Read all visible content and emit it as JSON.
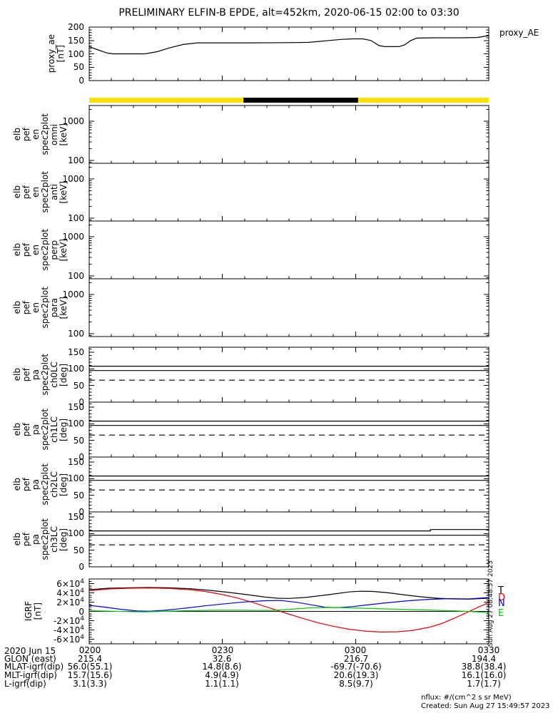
{
  "title": "PRELIMINARY ELFIN-B EPDE, alt=452km, 2020-06-15 02:00 to 03:30",
  "right_labels": {
    "proxy": "proxy_AE",
    "side_timestamp": "Sun Aug 27 08:48:57 2023",
    "igrf_legend": [
      {
        "label": "T",
        "color": "#000000"
      },
      {
        "label": "D",
        "color": "#e60000"
      },
      {
        "label": "N",
        "color": "#0000e6"
      },
      {
        "label": "E",
        "color": "#00c800"
      }
    ]
  },
  "footer": {
    "nflux": "nflux: #/(cm^2 s sr MeV)",
    "created": "Created: Sun Aug 27 15:49:57 2023"
  },
  "bottom": {
    "date_label": "2020 Jun 15",
    "rows": [
      {
        "label": "GLON (east)",
        "values": [
          "215.4",
          "32.6",
          "216.7",
          "194.4"
        ]
      },
      {
        "label": "MLAT-igrf(dip)",
        "values": [
          "56.0(55.1)",
          "14.8(8.6)",
          "-69.7(-70.6)",
          "38.8(38.4)"
        ]
      },
      {
        "label": "MLT-igrf(dip)",
        "values": [
          "15.7(15.6)",
          "4.9(4.9)",
          "20.6(19.3)",
          "16.1(16.0)"
        ]
      },
      {
        "label": "L-igrf(dip)",
        "values": [
          "3.1(3.3)",
          "1.1(1.1)",
          "8.5(9.7)",
          "1.7(1.7)"
        ]
      }
    ]
  },
  "left_labels": {
    "proxy": [
      "proxy_ae",
      "[nT]"
    ],
    "spectro": [
      [
        "elb",
        "pef",
        "en",
        "spec2plot",
        "omni",
        "[keV]"
      ],
      [
        "elb",
        "pef",
        "en",
        "spec2plot",
        "anti",
        "[keV]"
      ],
      [
        "elb",
        "pef",
        "en",
        "spec2plot",
        "perp",
        "[keV]"
      ],
      [
        "elb",
        "pef",
        "en",
        "spec2plot",
        "para",
        "[keV]"
      ]
    ],
    "pitch": [
      [
        "elb",
        "pef",
        "pa",
        "spec2plot",
        "ch0LC",
        "[deg]"
      ],
      [
        "elb",
        "pef",
        "pa",
        "spec2plot",
        "ch1LC",
        "[deg]"
      ],
      [
        "elb",
        "pef",
        "pa",
        "spec2plot",
        "ch2LC",
        "[deg]"
      ],
      [
        "elb",
        "pef",
        "pa",
        "spec2plot",
        "ch3LC",
        "[deg]"
      ]
    ],
    "igrf": [
      "IGRF",
      "[nT]"
    ]
  },
  "chart_data": {
    "x_axis": {
      "date": "2020 Jun 15",
      "ticks": [
        "0200",
        "0230",
        "0300",
        "0330"
      ],
      "minor_tick_minutes": 5,
      "span_minutes": 90
    },
    "proxy_ae": {
      "type": "line",
      "ylabel": "proxy_ae [nT]",
      "ylim": [
        0,
        200
      ],
      "yticks": [
        0,
        50,
        100,
        150,
        200
      ],
      "series": [
        {
          "name": "proxy_AE",
          "color": "#000000",
          "points": [
            [
              0,
              127
            ],
            [
              0.02,
              116
            ],
            [
              0.045,
              103
            ],
            [
              0.06,
              100
            ],
            [
              0.14,
              100
            ],
            [
              0.17,
              108
            ],
            [
              0.2,
              122
            ],
            [
              0.235,
              135
            ],
            [
              0.27,
              141
            ],
            [
              0.4,
              141
            ],
            [
              0.5,
              142
            ],
            [
              0.55,
              143
            ],
            [
              0.6,
              150
            ],
            [
              0.63,
              154
            ],
            [
              0.66,
              156
            ],
            [
              0.685,
              156
            ],
            [
              0.705,
              150
            ],
            [
              0.725,
              131
            ],
            [
              0.74,
              127
            ],
            [
              0.775,
              127
            ],
            [
              0.79,
              134
            ],
            [
              0.805,
              150
            ],
            [
              0.82,
              159
            ],
            [
              0.87,
              160
            ],
            [
              0.93,
              160
            ],
            [
              0.97,
              161
            ],
            [
              1,
              168
            ]
          ]
        }
      ]
    },
    "status_bar": {
      "type": "strip",
      "segments": [
        {
          "from": 0,
          "to": 0.386,
          "color": "#ffe100"
        },
        {
          "from": 0.386,
          "to": 0.673,
          "color": "#000000"
        },
        {
          "from": 0.673,
          "to": 1,
          "color": "#ffe100"
        }
      ]
    },
    "energy_spectrograms": {
      "type": "spectrogram",
      "yscale": "log",
      "ylim": [
        85,
        2500
      ],
      "yticks": [
        100,
        1000
      ],
      "units": "keV",
      "panels": [
        "omni",
        "anti",
        "perp",
        "para"
      ],
      "empty": true
    },
    "pitch_angle_panels": {
      "type": "line",
      "ylim": [
        0,
        165
      ],
      "yticks": [
        0,
        50,
        100,
        150
      ],
      "units": "deg",
      "panels": [
        {
          "name": "ch0LC",
          "lines": [
            {
              "style": "solid",
              "points": [
                [
                  0,
                  108
                ],
                [
                  1,
                  108
                ]
              ]
            },
            {
              "style": "solid",
              "points": [
                [
                  0,
                  95
                ],
                [
                  1,
                  95
                ]
              ]
            },
            {
              "style": "dashed",
              "points": [
                [
                  0,
                  66
                ],
                [
                  1,
                  66
                ]
              ]
            }
          ]
        },
        {
          "name": "ch1LC",
          "lines": [
            {
              "style": "solid",
              "points": [
                [
                  0,
                  108
                ],
                [
                  1,
                  108
                ]
              ]
            },
            {
              "style": "solid",
              "points": [
                [
                  0,
                  95
                ],
                [
                  1,
                  95
                ]
              ]
            },
            {
              "style": "dashed",
              "points": [
                [
                  0,
                  66
                ],
                [
                  1,
                  66
                ]
              ]
            }
          ]
        },
        {
          "name": "ch2LC",
          "lines": [
            {
              "style": "solid",
              "points": [
                [
                  0,
                  108
                ],
                [
                  1,
                  108
                ]
              ]
            },
            {
              "style": "solid",
              "points": [
                [
                  0,
                  95
                ],
                [
                  1,
                  95
                ]
              ]
            },
            {
              "style": "dashed",
              "points": [
                [
                  0,
                  66
                ],
                [
                  1,
                  66
                ]
              ]
            }
          ]
        },
        {
          "name": "ch3LC",
          "lines": [
            {
              "style": "solid",
              "points": [
                [
                  0,
                  108
                ],
                [
                  0.854,
                  108
                ],
                [
                  0.854,
                  112
                ],
                [
                  1,
                  112
                ]
              ]
            },
            {
              "style": "solid",
              "points": [
                [
                  0,
                  95
                ],
                [
                  1,
                  95
                ]
              ]
            },
            {
              "style": "dashed",
              "points": [
                [
                  0,
                  66
                ],
                [
                  1,
                  66
                ]
              ]
            }
          ]
        }
      ]
    },
    "igrf": {
      "type": "line",
      "ylabel": "IGRF [nT]",
      "ylim": [
        -70000,
        70000
      ],
      "ytick_labels": [
        "6×10^4",
        "4×10^4",
        "2×10^4",
        "0",
        "-2×10^4",
        "-4×10^4",
        "-6×10^4"
      ],
      "ytick_values": [
        60000,
        40000,
        20000,
        0,
        -20000,
        -40000,
        -60000
      ],
      "series": [
        {
          "name": "T",
          "color": "#000000",
          "points": [
            [
              0,
              47000
            ],
            [
              0.05,
              50000
            ],
            [
              0.1,
              51000
            ],
            [
              0.15,
              51500
            ],
            [
              0.2,
              51000
            ],
            [
              0.25,
              49000
            ],
            [
              0.3,
              45500
            ],
            [
              0.35,
              41000
            ],
            [
              0.4,
              35500
            ],
            [
              0.44,
              31000
            ],
            [
              0.47,
              28500
            ],
            [
              0.5,
              28000
            ],
            [
              0.54,
              30000
            ],
            [
              0.58,
              34000
            ],
            [
              0.62,
              38500
            ],
            [
              0.65,
              42000
            ],
            [
              0.68,
              43500
            ],
            [
              0.71,
              43000
            ],
            [
              0.75,
              40000
            ],
            [
              0.79,
              35500
            ],
            [
              0.83,
              31500
            ],
            [
              0.87,
              28500
            ],
            [
              0.91,
              27000
            ],
            [
              0.95,
              26500
            ],
            [
              1,
              28500
            ]
          ]
        },
        {
          "name": "D",
          "color": "#e60000",
          "points": [
            [
              0,
              44500
            ],
            [
              0.05,
              48500
            ],
            [
              0.1,
              50000
            ],
            [
              0.15,
              50500
            ],
            [
              0.2,
              49500
            ],
            [
              0.25,
              47000
            ],
            [
              0.29,
              43000
            ],
            [
              0.33,
              37000
            ],
            [
              0.37,
              29000
            ],
            [
              0.41,
              19000
            ],
            [
              0.45,
              8000
            ],
            [
              0.49,
              -3000
            ],
            [
              0.53,
              -14000
            ],
            [
              0.57,
              -24000
            ],
            [
              0.61,
              -32000
            ],
            [
              0.65,
              -38500
            ],
            [
              0.69,
              -42500
            ],
            [
              0.73,
              -44500
            ],
            [
              0.77,
              -44000
            ],
            [
              0.81,
              -41000
            ],
            [
              0.85,
              -34500
            ],
            [
              0.88,
              -27000
            ],
            [
              0.91,
              -16000
            ],
            [
              0.94,
              -4500
            ],
            [
              0.97,
              7500
            ],
            [
              1,
              19000
            ]
          ]
        },
        {
          "name": "N",
          "color": "#0000e6",
          "points": [
            [
              0,
              13000
            ],
            [
              0.04,
              9000
            ],
            [
              0.08,
              4500
            ],
            [
              0.12,
              1000
            ],
            [
              0.15,
              500
            ],
            [
              0.19,
              2500
            ],
            [
              0.24,
              7000
            ],
            [
              0.29,
              12000
            ],
            [
              0.34,
              16500
            ],
            [
              0.39,
              20500
            ],
            [
              0.44,
              23000
            ],
            [
              0.48,
              23500
            ],
            [
              0.52,
              19500
            ],
            [
              0.56,
              13500
            ],
            [
              0.59,
              9000
            ],
            [
              0.62,
              8000
            ],
            [
              0.66,
              10500
            ],
            [
              0.7,
              14500
            ],
            [
              0.75,
              19000
            ],
            [
              0.8,
              23000
            ],
            [
              0.85,
              26000
            ],
            [
              0.9,
              27500
            ],
            [
              0.95,
              27000
            ],
            [
              1,
              30000
            ]
          ]
        },
        {
          "name": "E",
          "color": "#00c800",
          "points": [
            [
              0,
              1500
            ],
            [
              0.05,
              500
            ],
            [
              0.1,
              -500
            ],
            [
              0.14,
              -1000
            ],
            [
              0.18,
              0
            ],
            [
              0.25,
              1500
            ],
            [
              0.32,
              2500
            ],
            [
              0.38,
              2500
            ],
            [
              0.43,
              2000
            ],
            [
              0.47,
              2500
            ],
            [
              0.52,
              5500
            ],
            [
              0.56,
              8000
            ],
            [
              0.6,
              8500
            ],
            [
              0.64,
              8000
            ],
            [
              0.68,
              7000
            ],
            [
              0.72,
              6000
            ],
            [
              0.76,
              5000
            ],
            [
              0.8,
              4000
            ],
            [
              0.84,
              3000
            ],
            [
              0.88,
              2000
            ],
            [
              0.92,
              1000
            ],
            [
              0.96,
              -500
            ],
            [
              1,
              -2500
            ]
          ]
        }
      ]
    }
  }
}
